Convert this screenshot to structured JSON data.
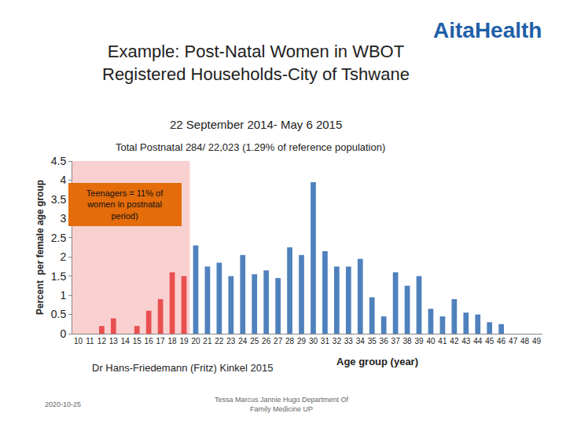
{
  "slide": {
    "title_lines": [
      "Example: Post-Natal Women in WBOT",
      "Registered Households-City of Tshwane"
    ],
    "subtitle": "22 September 2014- May 6 2015",
    "logo": "AitaHealth",
    "author": "Dr Hans-Friedemann (Fritz) Kinkel 2015",
    "date": "2020-10-25",
    "footer_lines": [
      "Tessa Marcus Jannie Hugo Department Of",
      "Family Medicine UP"
    ]
  },
  "chart_data": {
    "type": "bar",
    "title": "Total Postnatal 284/ 22,023 (1.29% of reference population)",
    "x_label": "Age group (year)",
    "y_label": "Percent  per female age group",
    "categories": [
      "10",
      "11",
      "12",
      "13",
      "14",
      "15",
      "16",
      "17",
      "18",
      "19",
      "20",
      "21",
      "22",
      "23",
      "24",
      "25",
      "26",
      "27",
      "28",
      "29",
      "30",
      "31",
      "32",
      "33",
      "34",
      "35",
      "36",
      "37",
      "38",
      "39",
      "40",
      "41",
      "42",
      "43",
      "44",
      "45",
      "46",
      "47",
      "48",
      "49"
    ],
    "values": [
      0,
      0,
      0.2,
      0.4,
      0,
      0.2,
      0.6,
      0.9,
      1.6,
      1.5,
      2.3,
      1.75,
      1.85,
      1.5,
      2.05,
      1.55,
      1.65,
      1.45,
      2.25,
      2.05,
      3.95,
      2.15,
      1.75,
      1.75,
      1.95,
      0.95,
      0.45,
      1.6,
      1.25,
      1.5,
      0.65,
      0.45,
      0.9,
      0.55,
      0.5,
      0.3,
      0.25,
      0,
      0,
      0
    ],
    "colors": [
      "#e8504f",
      "#e8504f",
      "#e8504f",
      "#e8504f",
      "#e8504f",
      "#e8504f",
      "#e8504f",
      "#e8504f",
      "#e8504f",
      "#e8504f",
      "#4f81bd",
      "#4f81bd",
      "#4f81bd",
      "#4f81bd",
      "#4f81bd",
      "#4f81bd",
      "#4f81bd",
      "#4f81bd",
      "#4f81bd",
      "#4f81bd",
      "#4f81bd",
      "#4f81bd",
      "#4f81bd",
      "#4f81bd",
      "#4f81bd",
      "#4f81bd",
      "#4f81bd",
      "#4f81bd",
      "#4f81bd",
      "#4f81bd",
      "#4f81bd",
      "#4f81bd",
      "#4f81bd",
      "#4f81bd",
      "#4f81bd",
      "#4f81bd",
      "#4f81bd",
      "#4f81bd",
      "#4f81bd",
      "#4f81bd"
    ],
    "ylim": [
      0,
      4.5
    ],
    "yticks": [
      0,
      0.5,
      1,
      1.5,
      2,
      2.5,
      3,
      3.5,
      4,
      4.5
    ],
    "grid": false,
    "annotations": [
      {
        "text": "Teenagers = 11% of women in postnatal period)"
      }
    ]
  }
}
